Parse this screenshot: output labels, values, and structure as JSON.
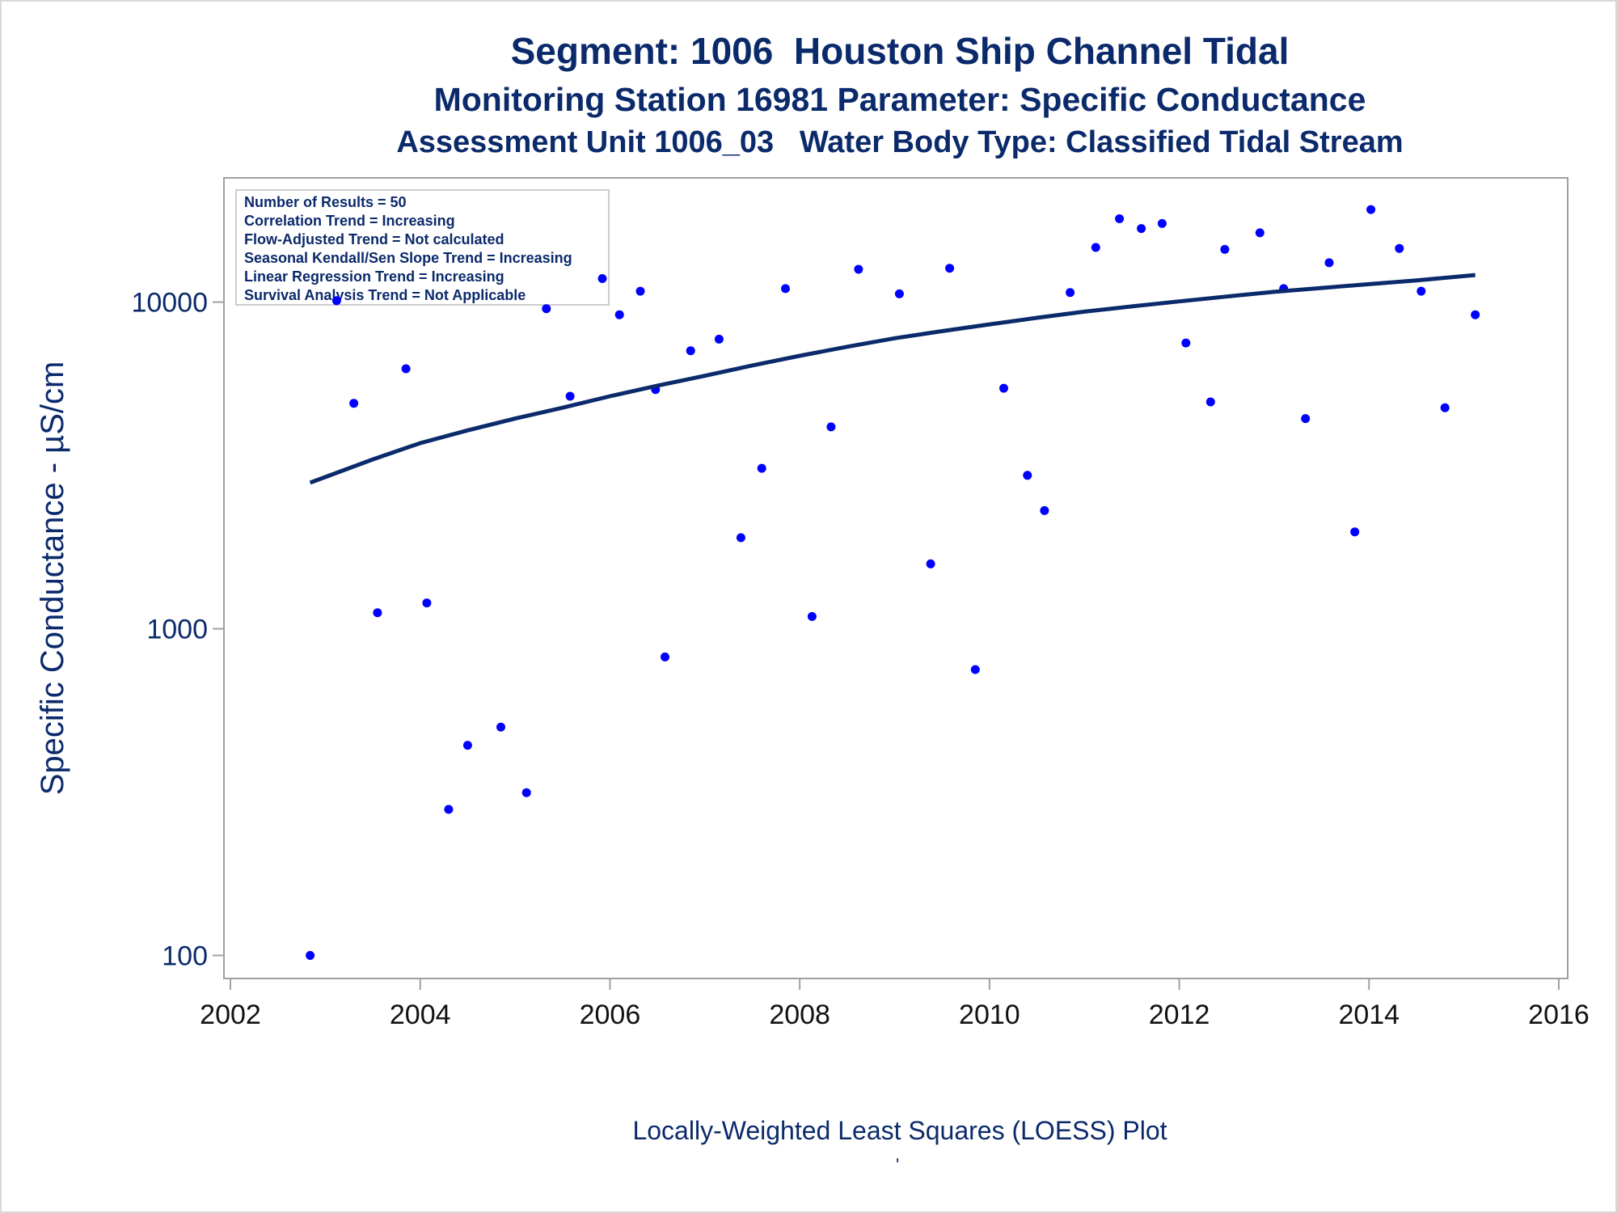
{
  "titles": {
    "line1": "Segment: 1006  Houston Ship Channel Tidal",
    "line2": "Monitoring Station 16981 Parameter: Specific Conductance",
    "line3": "Assessment Unit 1006_03   Water Body Type: Classified Tidal Stream"
  },
  "footer": "Locally-Weighted Least Squares (LOESS) Plot",
  "footer_mark": "'",
  "stats": [
    "Number of Results = 50",
    "Correlation Trend = Increasing",
    "Flow-Adjusted Trend = Not calculated",
    "Seasonal Kendall/Sen Slope Trend = Increasing",
    "Linear Regression Trend = Increasing",
    "Survival Analysis Trend = Not Applicable"
  ],
  "colors": {
    "text": "#0b2a6b",
    "points": "#0000ff",
    "line": "#0b2a6b",
    "frame": "#a0a0a0"
  },
  "chart_data": {
    "type": "scatter",
    "title": "Segment: 1006  Houston Ship Channel Tidal",
    "ylabel": "Specific Conductance -  µS/cm",
    "xlabel": "",
    "yscale": "log",
    "xlim": [
      2002,
      2016
    ],
    "ylim": [
      85,
      24000
    ],
    "x_ticks": [
      2002,
      2004,
      2006,
      2008,
      2010,
      2012,
      2014,
      2016
    ],
    "y_ticks": [
      100,
      1000,
      10000
    ],
    "grid": false,
    "legend": "top-left",
    "series": [
      {
        "type": "scatter",
        "x": [
          2002.84,
          2003.12,
          2003.3,
          2003.55,
          2003.85,
          2004.07,
          2004.3,
          2004.5,
          2004.85,
          2005.12,
          2005.33,
          2005.58,
          2005.92,
          2006.1,
          2006.32,
          2006.48,
          2006.58,
          2006.85,
          2007.15,
          2007.38,
          2007.6,
          2007.85,
          2008.13,
          2008.33,
          2008.62,
          2009.05,
          2009.38,
          2009.58,
          2009.85,
          2010.15,
          2010.4,
          2010.58,
          2010.85,
          2011.12,
          2011.37,
          2011.6,
          2011.82,
          2012.07,
          2012.33,
          2012.48,
          2012.85,
          2013.1,
          2013.33,
          2013.58,
          2013.85,
          2014.02,
          2014.32,
          2014.55,
          2014.8,
          2015.12
        ],
        "y": [
          100,
          10100,
          4900,
          1120,
          6250,
          1200,
          280,
          440,
          500,
          315,
          9550,
          5150,
          11800,
          9150,
          10800,
          5400,
          820,
          7100,
          7700,
          1900,
          3100,
          11000,
          1090,
          4150,
          12600,
          10600,
          1580,
          12700,
          750,
          5450,
          2950,
          2300,
          10700,
          14700,
          18000,
          16800,
          17400,
          7500,
          4950,
          14500,
          16300,
          11000,
          4400,
          13200,
          1980,
          19200,
          14600,
          10800,
          4750,
          9150
        ]
      },
      {
        "type": "line",
        "name": "",
        "x": [
          2002.84,
          2003.5,
          2004,
          2004.5,
          2005,
          2005.5,
          2006,
          2006.5,
          2007,
          2007.5,
          2008,
          2008.5,
          2009,
          2009.5,
          2010,
          2010.5,
          2011,
          2011.5,
          2012,
          2012.5,
          2013,
          2013.5,
          2014,
          2014.5,
          2015.12
        ],
        "y": [
          2800,
          3300,
          3700,
          4050,
          4400,
          4750,
          5150,
          5550,
          5950,
          6400,
          6850,
          7300,
          7750,
          8150,
          8550,
          8950,
          9350,
          9700,
          10050,
          10400,
          10750,
          11050,
          11350,
          11650,
          12100
        ]
      }
    ]
  }
}
